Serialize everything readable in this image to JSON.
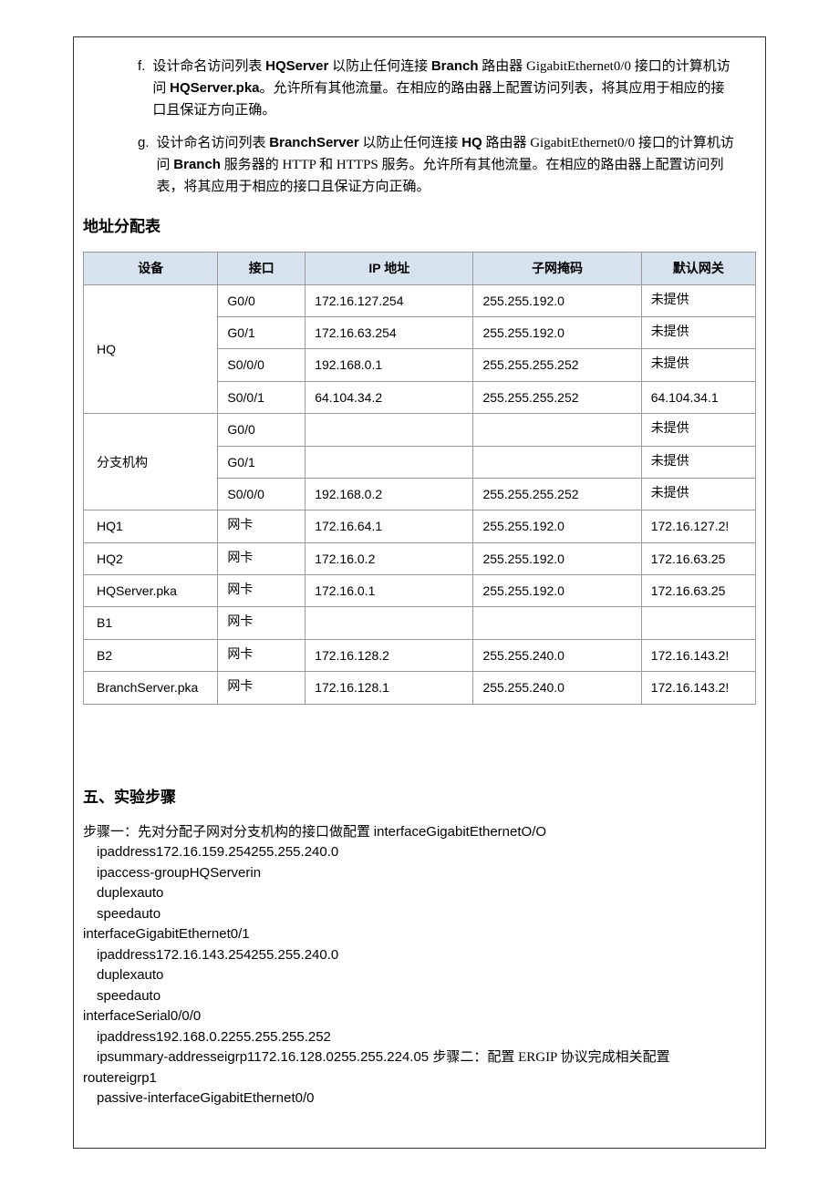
{
  "list_items": [
    {
      "marker": "f.",
      "parts": [
        {
          "t": "设计命名访问列表 ",
          "b": false
        },
        {
          "t": "HQServer",
          "b": true
        },
        {
          "t": " 以防止任何连接 ",
          "b": false
        },
        {
          "t": "Branch",
          "b": true
        },
        {
          "t": " 路由器 GigabitEthernet0/0 接口的计算机访问 ",
          "b": false
        },
        {
          "t": "HQServer.pka",
          "b": true
        },
        {
          "t": "。允许所有其他流量。在相应的路由器上配置访问列表，将其应用于相应的接口且保证方向正确。",
          "b": false
        }
      ]
    },
    {
      "marker": "g.",
      "parts": [
        {
          "t": "设计命名访问列表 ",
          "b": false
        },
        {
          "t": "BranchServer",
          "b": true
        },
        {
          "t": " 以防止任何连接 ",
          "b": false
        },
        {
          "t": "HQ",
          "b": true
        },
        {
          "t": " 路由器 GigabitEthernet0/0 接口的计算机访问 ",
          "b": false
        },
        {
          "t": "Branch",
          "b": true
        },
        {
          "t": " 服务器的 HTTP 和 HTTPS 服务。允许所有其他流量。在相应的路由器上配置访问列表，将其应用于相应的接口且保证方向正确。",
          "b": false
        }
      ]
    }
  ],
  "table_heading": "地址分配表",
  "table": {
    "columns": [
      "设备",
      "接口",
      "IP 地址",
      "子网掩码",
      "默认网关"
    ],
    "col_widths": [
      "20%",
      "13%",
      "25%",
      "25%",
      "17%"
    ],
    "header_bg": "#d6e3ef",
    "border_color": "#999999",
    "rows": [
      {
        "dev": "HQ",
        "rowspan": 4,
        "iface": "G0/0",
        "ip": "172.16.127.254",
        "mask": "255.255.192.0",
        "gw": "未提供"
      },
      {
        "iface": "G0/1",
        "ip": "172.16.63.254",
        "mask": "255.255.192.0",
        "gw": "未提供"
      },
      {
        "iface": "S0/0/0",
        "ip": "192.168.0.1",
        "mask": "255.255.255.252",
        "gw": "未提供"
      },
      {
        "iface": "S0/0/1",
        "ip": "64.104.34.2",
        "mask": "255.255.255.252",
        "gw": "64.104.34.1"
      },
      {
        "dev": "分支机构",
        "rowspan": 3,
        "iface": "G0/0",
        "ip": "",
        "mask": "",
        "gw": "未提供"
      },
      {
        "iface": "G0/1",
        "ip": "",
        "mask": "",
        "gw": "未提供"
      },
      {
        "iface": "S0/0/0",
        "ip": "192.168.0.2",
        "mask": "255.255.255.252",
        "gw": "未提供"
      },
      {
        "dev": "HQ1",
        "rowspan": 1,
        "iface": "网卡",
        "ip": "172.16.64.1",
        "mask": "255.255.192.0",
        "gw": "172.16.127.2!"
      },
      {
        "dev": "HQ2",
        "rowspan": 1,
        "iface": "网卡",
        "ip": "172.16.0.2",
        "mask": "255.255.192.0",
        "gw": "172.16.63.25"
      },
      {
        "dev": "HQServer.pka",
        "rowspan": 1,
        "iface": "网卡",
        "ip": "172.16.0.1",
        "mask": "255.255.192.0",
        "gw": "172.16.63.25"
      },
      {
        "dev": "B1",
        "rowspan": 1,
        "iface": "网卡",
        "ip": "",
        "mask": "",
        "gw": ""
      },
      {
        "dev": "B2",
        "rowspan": 1,
        "iface": "网卡",
        "ip": "172.16.128.2",
        "mask": "255.255.240.0",
        "gw": "172.16.143.2!"
      },
      {
        "dev": "BranchServer.pka",
        "rowspan": 1,
        "iface": "网卡",
        "ip": "172.16.128.1",
        "mask": "255.255.240.0",
        "gw": "172.16.143.2!"
      }
    ]
  },
  "steps_heading": "五、实验步骤",
  "steps_lines": [
    {
      "indent": 0,
      "parts": [
        {
          "t": "步骤一：先对分配子网对分支机构的接口做配置 ",
          "s": false
        },
        {
          "t": "interfaceGigabitEthernetO/O",
          "s": true
        }
      ]
    },
    {
      "indent": 1,
      "parts": [
        {
          "t": "ipaddress172.16.159.254255.255.240.0",
          "s": true
        }
      ]
    },
    {
      "indent": 1,
      "parts": [
        {
          "t": "ipaccess-groupHQServerin",
          "s": true
        }
      ]
    },
    {
      "indent": 1,
      "parts": [
        {
          "t": "duplexauto",
          "s": true
        }
      ]
    },
    {
      "indent": 1,
      "parts": [
        {
          "t": "speedauto",
          "s": true
        }
      ]
    },
    {
      "indent": 0,
      "parts": [
        {
          "t": "interfaceGigabitEthernet0/1",
          "s": true
        }
      ]
    },
    {
      "indent": 1,
      "parts": [
        {
          "t": "ipaddress172.16.143.254255.255.240.0",
          "s": true
        }
      ]
    },
    {
      "indent": 1,
      "parts": [
        {
          "t": "duplexauto",
          "s": true
        }
      ]
    },
    {
      "indent": 1,
      "parts": [
        {
          "t": "speedauto",
          "s": true
        }
      ]
    },
    {
      "indent": 0,
      "parts": [
        {
          "t": "interfaceSerial0/0/0",
          "s": true
        }
      ]
    },
    {
      "indent": 1,
      "parts": [
        {
          "t": "ipaddress192.168.0.2255.255.255.252",
          "s": true
        }
      ]
    },
    {
      "indent": 1,
      "parts": [
        {
          "t": "ipsummary-addresseigrp1172.16.128.0255.255.224.05 ",
          "s": true
        },
        {
          "t": "步骤二：配置 ERGIP 协议完成相关配置",
          "s": false
        }
      ]
    },
    {
      "indent": 0,
      "parts": [
        {
          "t": "routereigrp1",
          "s": true
        }
      ]
    },
    {
      "indent": 1,
      "parts": [
        {
          "t": "passive-interfaceGigabitEthernet0/0",
          "s": true
        }
      ]
    }
  ]
}
